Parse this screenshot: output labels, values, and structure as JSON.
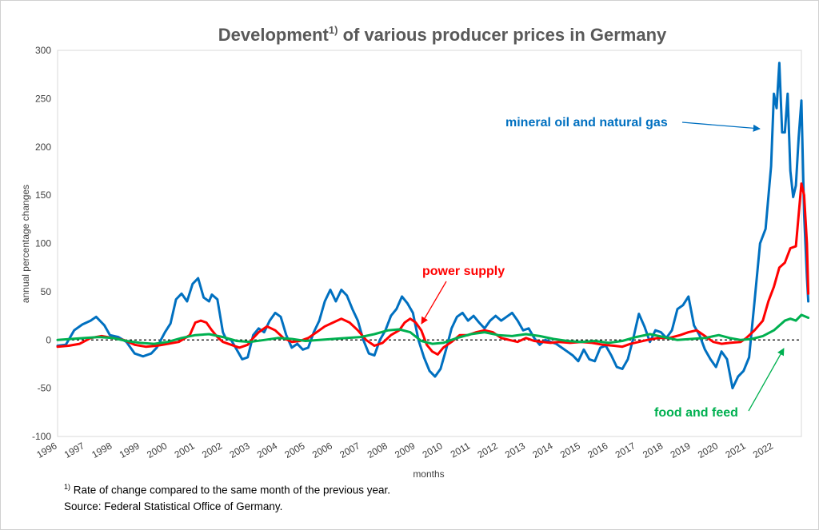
{
  "chart_data": {
    "type": "line",
    "title_main": "Development",
    "title_sup": "1)",
    "title_rest": " of various producer prices in Germany",
    "xlabel": "months",
    "ylabel": "annual percentage changes",
    "ylim": [
      -100,
      300
    ],
    "yticks": [
      300,
      250,
      200,
      150,
      100,
      50,
      0,
      -50,
      -100
    ],
    "xlim": [
      1996,
      2023
    ],
    "xticks": [
      "1996",
      "1997",
      "1998",
      "1999",
      "2000",
      "2001",
      "2002",
      "2003",
      "2004",
      "2005",
      "2006",
      "2007",
      "2008",
      "2009",
      "2010",
      "2011",
      "2012",
      "2013",
      "2014",
      "2015",
      "2016",
      "2017",
      "2018",
      "2019",
      "2020",
      "2021",
      "2022"
    ],
    "zero_line": "dashed",
    "grid": false,
    "series": [
      {
        "name": "mineral oil and natural gas",
        "color": "#0070c0",
        "points": [
          [
            1996.0,
            -6
          ],
          [
            1996.3,
            -5
          ],
          [
            1996.6,
            10
          ],
          [
            1996.9,
            16
          ],
          [
            1997.2,
            20
          ],
          [
            1997.4,
            24
          ],
          [
            1997.7,
            15
          ],
          [
            1997.9,
            5
          ],
          [
            1998.2,
            3
          ],
          [
            1998.5,
            -2
          ],
          [
            1998.8,
            -14
          ],
          [
            1999.1,
            -17
          ],
          [
            1999.4,
            -14
          ],
          [
            1999.6,
            -8
          ],
          [
            1999.9,
            8
          ],
          [
            2000.1,
            17
          ],
          [
            2000.3,
            42
          ],
          [
            2000.5,
            48
          ],
          [
            2000.7,
            40
          ],
          [
            2000.9,
            58
          ],
          [
            2001.1,
            64
          ],
          [
            2001.3,
            44
          ],
          [
            2001.5,
            40
          ],
          [
            2001.6,
            47
          ],
          [
            2001.8,
            42
          ],
          [
            2002.0,
            8
          ],
          [
            2002.1,
            2
          ],
          [
            2002.3,
            0
          ],
          [
            2002.5,
            -10
          ],
          [
            2002.7,
            -20
          ],
          [
            2002.9,
            -18
          ],
          [
            2003.1,
            5
          ],
          [
            2003.3,
            12
          ],
          [
            2003.5,
            8
          ],
          [
            2003.7,
            20
          ],
          [
            2003.9,
            28
          ],
          [
            2004.1,
            24
          ],
          [
            2004.3,
            5
          ],
          [
            2004.5,
            -8
          ],
          [
            2004.7,
            -4
          ],
          [
            2004.9,
            -10
          ],
          [
            2005.1,
            -8
          ],
          [
            2005.3,
            8
          ],
          [
            2005.5,
            20
          ],
          [
            2005.7,
            40
          ],
          [
            2005.9,
            52
          ],
          [
            2006.1,
            40
          ],
          [
            2006.3,
            52
          ],
          [
            2006.5,
            46
          ],
          [
            2006.7,
            32
          ],
          [
            2006.9,
            20
          ],
          [
            2007.1,
            0
          ],
          [
            2007.3,
            -14
          ],
          [
            2007.5,
            -16
          ],
          [
            2007.7,
            0
          ],
          [
            2007.9,
            10
          ],
          [
            2008.1,
            25
          ],
          [
            2008.3,
            32
          ],
          [
            2008.5,
            45
          ],
          [
            2008.7,
            38
          ],
          [
            2008.9,
            28
          ],
          [
            2009.1,
            0
          ],
          [
            2009.3,
            -18
          ],
          [
            2009.5,
            -32
          ],
          [
            2009.7,
            -38
          ],
          [
            2009.9,
            -30
          ],
          [
            2010.1,
            -10
          ],
          [
            2010.3,
            12
          ],
          [
            2010.5,
            24
          ],
          [
            2010.7,
            28
          ],
          [
            2010.9,
            20
          ],
          [
            2011.1,
            25
          ],
          [
            2011.3,
            18
          ],
          [
            2011.5,
            12
          ],
          [
            2011.7,
            20
          ],
          [
            2011.9,
            25
          ],
          [
            2012.1,
            20
          ],
          [
            2012.3,
            24
          ],
          [
            2012.5,
            28
          ],
          [
            2012.7,
            20
          ],
          [
            2012.9,
            10
          ],
          [
            2013.1,
            12
          ],
          [
            2013.3,
            2
          ],
          [
            2013.5,
            -5
          ],
          [
            2013.7,
            0
          ],
          [
            2013.9,
            -2
          ],
          [
            2014.1,
            -4
          ],
          [
            2014.3,
            -8
          ],
          [
            2014.5,
            -12
          ],
          [
            2014.7,
            -16
          ],
          [
            2014.9,
            -22
          ],
          [
            2015.1,
            -10
          ],
          [
            2015.3,
            -20
          ],
          [
            2015.5,
            -22
          ],
          [
            2015.7,
            -8
          ],
          [
            2015.9,
            -6
          ],
          [
            2016.1,
            -16
          ],
          [
            2016.3,
            -28
          ],
          [
            2016.5,
            -30
          ],
          [
            2016.7,
            -20
          ],
          [
            2016.9,
            2
          ],
          [
            2017.1,
            27
          ],
          [
            2017.3,
            14
          ],
          [
            2017.5,
            -2
          ],
          [
            2017.7,
            10
          ],
          [
            2017.9,
            8
          ],
          [
            2018.1,
            2
          ],
          [
            2018.3,
            10
          ],
          [
            2018.5,
            32
          ],
          [
            2018.7,
            36
          ],
          [
            2018.9,
            45
          ],
          [
            2019.1,
            15
          ],
          [
            2019.3,
            5
          ],
          [
            2019.5,
            -10
          ],
          [
            2019.7,
            -20
          ],
          [
            2019.9,
            -28
          ],
          [
            2020.1,
            -12
          ],
          [
            2020.3,
            -20
          ],
          [
            2020.5,
            -50
          ],
          [
            2020.7,
            -38
          ],
          [
            2020.9,
            -32
          ],
          [
            2021.1,
            -18
          ],
          [
            2021.3,
            40
          ],
          [
            2021.5,
            100
          ],
          [
            2021.7,
            115
          ],
          [
            2021.9,
            180
          ],
          [
            2022.0,
            255
          ],
          [
            2022.1,
            240
          ],
          [
            2022.2,
            287
          ],
          [
            2022.3,
            215
          ],
          [
            2022.4,
            215
          ],
          [
            2022.5,
            255
          ],
          [
            2022.6,
            175
          ],
          [
            2022.7,
            148
          ],
          [
            2022.8,
            160
          ],
          [
            2022.9,
            210
          ],
          [
            2023.0,
            248
          ],
          [
            2023.1,
            130
          ],
          [
            2023.2,
            65
          ],
          [
            2023.25,
            40
          ]
        ]
      },
      {
        "name": "power supply",
        "color": "#ff0000",
        "points": [
          [
            1996.0,
            -7
          ],
          [
            1996.4,
            -6
          ],
          [
            1996.8,
            -4
          ],
          [
            1997.2,
            2
          ],
          [
            1997.6,
            4
          ],
          [
            1998.0,
            2
          ],
          [
            1998.4,
            0
          ],
          [
            1998.8,
            -5
          ],
          [
            1999.2,
            -7
          ],
          [
            1999.6,
            -6
          ],
          [
            2000.0,
            -4
          ],
          [
            2000.4,
            -2
          ],
          [
            2000.8,
            5
          ],
          [
            2001.0,
            18
          ],
          [
            2001.2,
            20
          ],
          [
            2001.4,
            18
          ],
          [
            2001.6,
            10
          ],
          [
            2001.8,
            3
          ],
          [
            2002.0,
            -2
          ],
          [
            2002.3,
            -5
          ],
          [
            2002.6,
            -8
          ],
          [
            2002.9,
            -5
          ],
          [
            2003.1,
            2
          ],
          [
            2003.3,
            8
          ],
          [
            2003.6,
            14
          ],
          [
            2003.9,
            10
          ],
          [
            2004.2,
            2
          ],
          [
            2004.5,
            -2
          ],
          [
            2004.8,
            -1
          ],
          [
            2005.1,
            2
          ],
          [
            2005.4,
            8
          ],
          [
            2005.7,
            14
          ],
          [
            2006.0,
            18
          ],
          [
            2006.3,
            22
          ],
          [
            2006.6,
            18
          ],
          [
            2006.9,
            10
          ],
          [
            2007.2,
            0
          ],
          [
            2007.5,
            -6
          ],
          [
            2007.8,
            -3
          ],
          [
            2008.1,
            5
          ],
          [
            2008.4,
            10
          ],
          [
            2008.6,
            18
          ],
          [
            2008.8,
            22
          ],
          [
            2009.0,
            18
          ],
          [
            2009.2,
            10
          ],
          [
            2009.4,
            -5
          ],
          [
            2009.6,
            -12
          ],
          [
            2009.8,
            -15
          ],
          [
            2010.0,
            -8
          ],
          [
            2010.3,
            -2
          ],
          [
            2010.6,
            5
          ],
          [
            2010.9,
            5
          ],
          [
            2011.2,
            8
          ],
          [
            2011.5,
            10
          ],
          [
            2011.8,
            8
          ],
          [
            2012.1,
            2
          ],
          [
            2012.4,
            0
          ],
          [
            2012.7,
            -2
          ],
          [
            2013.0,
            2
          ],
          [
            2013.3,
            -1
          ],
          [
            2013.6,
            -2
          ],
          [
            2013.9,
            -3
          ],
          [
            2014.2,
            -2
          ],
          [
            2014.6,
            -3
          ],
          [
            2015.0,
            -2
          ],
          [
            2015.4,
            -3
          ],
          [
            2015.8,
            -5
          ],
          [
            2016.2,
            -6
          ],
          [
            2016.5,
            -7
          ],
          [
            2016.8,
            -4
          ],
          [
            2017.1,
            -2
          ],
          [
            2017.4,
            0
          ],
          [
            2017.8,
            2
          ],
          [
            2018.2,
            2
          ],
          [
            2018.6,
            5
          ],
          [
            2018.9,
            8
          ],
          [
            2019.2,
            10
          ],
          [
            2019.5,
            4
          ],
          [
            2019.8,
            -2
          ],
          [
            2020.1,
            -4
          ],
          [
            2020.4,
            -3
          ],
          [
            2020.8,
            -2
          ],
          [
            2021.0,
            2
          ],
          [
            2021.3,
            10
          ],
          [
            2021.6,
            20
          ],
          [
            2021.8,
            40
          ],
          [
            2022.0,
            55
          ],
          [
            2022.2,
            75
          ],
          [
            2022.4,
            80
          ],
          [
            2022.6,
            95
          ],
          [
            2022.8,
            97
          ],
          [
            2022.9,
            130
          ],
          [
            2023.0,
            162
          ],
          [
            2023.1,
            150
          ],
          [
            2023.2,
            100
          ],
          [
            2023.25,
            48
          ]
        ]
      },
      {
        "name": "food and feed",
        "color": "#00b050",
        "points": [
          [
            1996.0,
            0
          ],
          [
            1996.5,
            1
          ],
          [
            1997.0,
            2
          ],
          [
            1997.5,
            3
          ],
          [
            1998.0,
            2
          ],
          [
            1998.5,
            -1
          ],
          [
            1999.0,
            -3
          ],
          [
            1999.5,
            -4
          ],
          [
            2000.0,
            -2
          ],
          [
            2000.5,
            2
          ],
          [
            2001.0,
            5
          ],
          [
            2001.5,
            6
          ],
          [
            2002.0,
            3
          ],
          [
            2002.5,
            -1
          ],
          [
            2003.0,
            -2
          ],
          [
            2003.5,
            0
          ],
          [
            2004.0,
            2
          ],
          [
            2004.5,
            1
          ],
          [
            2005.0,
            -1
          ],
          [
            2005.5,
            0
          ],
          [
            2006.0,
            1
          ],
          [
            2006.5,
            2
          ],
          [
            2007.0,
            3
          ],
          [
            2007.5,
            6
          ],
          [
            2008.0,
            10
          ],
          [
            2008.4,
            11
          ],
          [
            2008.8,
            8
          ],
          [
            2009.2,
            -1
          ],
          [
            2009.6,
            -4
          ],
          [
            2010.0,
            -3
          ],
          [
            2010.5,
            2
          ],
          [
            2011.0,
            6
          ],
          [
            2011.5,
            8
          ],
          [
            2012.0,
            5
          ],
          [
            2012.5,
            4
          ],
          [
            2013.0,
            6
          ],
          [
            2013.5,
            4
          ],
          [
            2014.0,
            1
          ],
          [
            2014.5,
            -1
          ],
          [
            2015.0,
            -2
          ],
          [
            2015.5,
            -1
          ],
          [
            2016.0,
            -3
          ],
          [
            2016.5,
            -1
          ],
          [
            2017.0,
            3
          ],
          [
            2017.5,
            6
          ],
          [
            2018.0,
            3
          ],
          [
            2018.5,
            0
          ],
          [
            2019.0,
            1
          ],
          [
            2019.5,
            2
          ],
          [
            2020.0,
            5
          ],
          [
            2020.4,
            2
          ],
          [
            2020.8,
            0
          ],
          [
            2021.2,
            1
          ],
          [
            2021.6,
            4
          ],
          [
            2022.0,
            10
          ],
          [
            2022.4,
            20
          ],
          [
            2022.6,
            22
          ],
          [
            2022.8,
            20
          ],
          [
            2023.0,
            26
          ],
          [
            2023.25,
            23
          ]
        ]
      }
    ],
    "annotations": [
      {
        "text": "mineral oil and natural gas",
        "color": "#0070c0"
      },
      {
        "text": "power supply",
        "color": "#ff0000"
      },
      {
        "text": "food and feed",
        "color": "#00b050"
      }
    ]
  },
  "footnote": {
    "marker": "1)",
    "text": " Rate of change compared to the same month of the previous year.",
    "source": "Source: Federal Statistical Office of Germany."
  }
}
